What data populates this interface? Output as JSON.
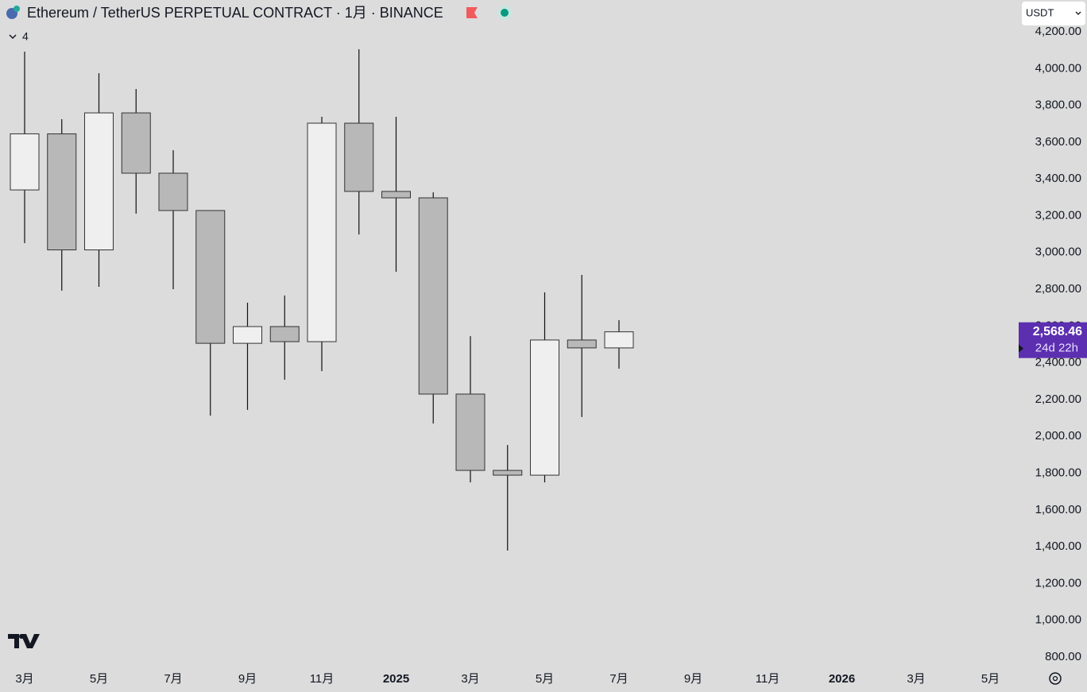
{
  "chart_data": {
    "type": "candlestick",
    "title": "Ethereum / TetherUS PERPETUAL CONTRACT · 1月 · BINANCE",
    "currency": "USDT",
    "indicator_count": 4,
    "categories": [
      "3月",
      null,
      "5月",
      null,
      "7月",
      null,
      "9月",
      null,
      "11月",
      null,
      "2025",
      null,
      "3月",
      null,
      "5月",
      null,
      "7月",
      null,
      "9月",
      null,
      "11月",
      null,
      "2026",
      null,
      "3月",
      null,
      "5月"
    ],
    "open": [
      3340,
      3645,
      3014,
      3759,
      3431,
      3228,
      2506,
      2597,
      2515,
      3703,
      3332,
      3297,
      2230,
      1815,
      1789,
      2524,
      2481,
      null,
      null,
      null,
      null,
      null,
      null,
      null,
      null,
      null,
      null
    ],
    "high": [
      4092,
      3725,
      3975,
      3889,
      3556,
      3230,
      2727,
      2766,
      3738,
      4105,
      3738,
      3327,
      2545,
      1953,
      2783,
      2878,
      2632,
      null,
      null,
      null,
      null,
      null,
      null,
      null,
      null,
      null,
      null
    ],
    "low": [
      3051,
      2792,
      2813,
      3211,
      2800,
      2113,
      2144,
      2308,
      2355,
      3098,
      2895,
      2070,
      1750,
      1379,
      1750,
      2105,
      2368,
      null,
      null,
      null,
      null,
      null,
      null,
      null,
      null,
      null,
      null
    ],
    "close": [
      3645,
      3014,
      3759,
      3431,
      3228,
      2506,
      2597,
      2515,
      3703,
      3332,
      3297,
      2230,
      1815,
      1789,
      2524,
      2481,
      2568.46,
      null,
      null,
      null,
      null,
      null,
      null,
      null,
      null,
      null,
      null
    ],
    "up_color": "#f0eff0",
    "down_color": "#b8b8b8",
    "last_price": {
      "value": 2568.46,
      "label": "2,568.46"
    },
    "countdown": "24d 22h",
    "ylim": [
      800,
      4200
    ],
    "yticks": [
      {
        "value": 800,
        "label": "800.00"
      },
      {
        "value": 1000,
        "label": "1,000.00"
      },
      {
        "value": 1200,
        "label": "1,200.00"
      },
      {
        "value": 1400,
        "label": "1,400.00"
      },
      {
        "value": 1600,
        "label": "1,600.00"
      },
      {
        "value": 1800,
        "label": "1,800.00"
      },
      {
        "value": 2000,
        "label": "2,000.00"
      },
      {
        "value": 2200,
        "label": "2,200.00"
      },
      {
        "value": 2400,
        "label": "2,400.00"
      },
      {
        "value": 2600,
        "label": "2,600.00"
      },
      {
        "value": 2800,
        "label": "2,800.00"
      },
      {
        "value": 3000,
        "label": "3,000.00"
      },
      {
        "value": 3200,
        "label": "3,200.00"
      },
      {
        "value": 3400,
        "label": "3,400.00"
      },
      {
        "value": 3600,
        "label": "3,600.00"
      },
      {
        "value": 3800,
        "label": "3,800.00"
      },
      {
        "value": 4000,
        "label": "4,000.00"
      },
      {
        "value": 4200,
        "label": "4,200.00"
      }
    ],
    "grid": false
  }
}
